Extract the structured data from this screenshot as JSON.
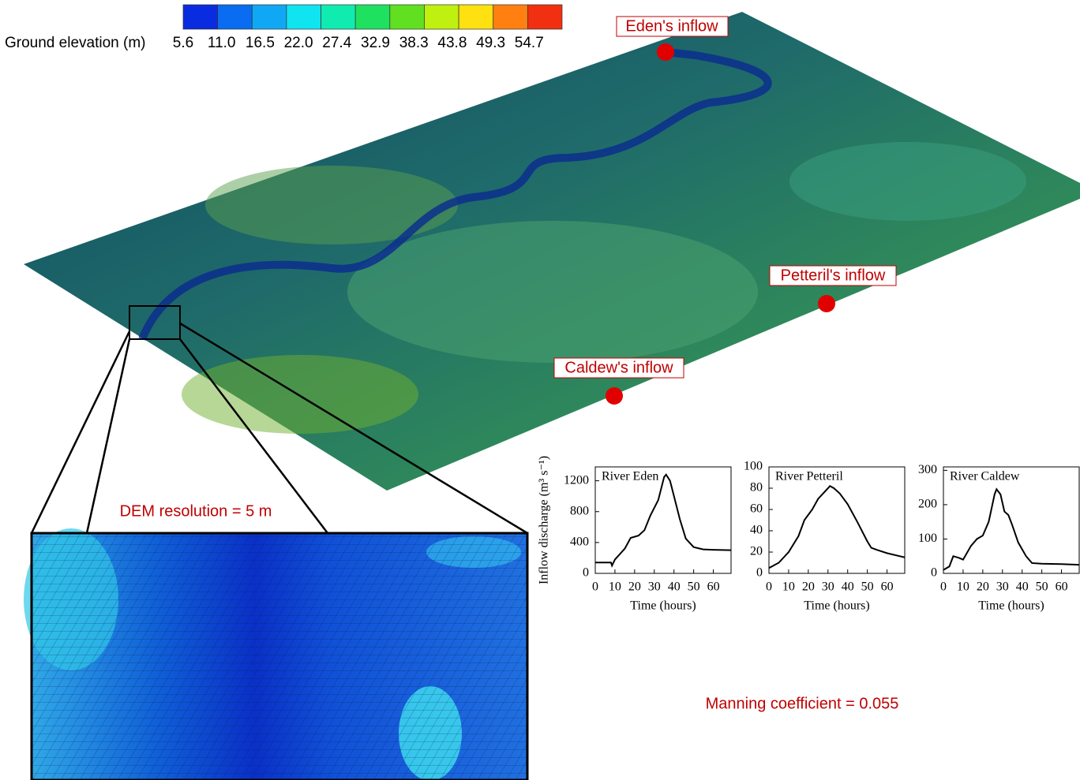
{
  "colorbar": {
    "label": "Ground elevation (m)",
    "ticks": [
      5.6,
      {
        "value": 11,
        "label": "11.0"
      },
      16.5,
      {
        "value": 22,
        "label": "22.0"
      },
      27.4,
      32.9,
      38.3,
      43.8,
      49.3,
      54.7
    ],
    "colors": [
      "#0a2ce0",
      "#0a6cf0",
      "#10a8f4",
      "#10e4f0",
      "#10ecb0",
      "#20e060",
      "#60e020",
      "#c0f010",
      "#ffe010",
      "#ff8010",
      "#f03010"
    ]
  },
  "annotations": {
    "eden": "Eden's inflow",
    "petteril": "Petteril's inflow",
    "caldew": "Caldew's inflow",
    "dem": "DEM resolution = 5 m",
    "manning": "Manning coefficient = 0.055"
  },
  "chart_data": [
    {
      "type": "line",
      "title": "River Eden",
      "ylabel": "Inflow discharge (m³ s⁻¹)",
      "xlabel": "Time (hours)",
      "color": "#000000",
      "x": [
        0,
        8,
        8.5,
        10,
        15,
        18,
        22,
        25,
        28,
        32,
        35,
        36,
        38,
        40,
        43,
        46,
        50,
        55,
        60,
        69
      ],
      "values": [
        140,
        140,
        100,
        180,
        320,
        460,
        490,
        560,
        750,
        950,
        1250,
        1280,
        1200,
        1000,
        700,
        450,
        340,
        310,
        305,
        300
      ],
      "xlim": [
        0,
        69
      ],
      "ylim": [
        0,
        1380
      ],
      "xticks": [
        0,
        10,
        20,
        30,
        40,
        50,
        60
      ],
      "yticks": [
        0,
        400,
        800,
        1200
      ]
    },
    {
      "type": "line",
      "title": "River Petteril",
      "xlabel": "Time (hours)",
      "color": "#000000",
      "x": [
        0,
        5,
        10,
        15,
        18,
        22,
        25,
        28,
        31,
        33,
        36,
        40,
        45,
        50,
        52,
        55,
        60,
        69
      ],
      "values": [
        5,
        10,
        20,
        35,
        50,
        60,
        70,
        76,
        82,
        80,
        75,
        65,
        48,
        30,
        24,
        22,
        19,
        15
      ],
      "xlim": [
        0,
        69
      ],
      "ylim": [
        0,
        100
      ],
      "xticks": [
        0,
        10,
        20,
        30,
        40,
        50,
        60
      ],
      "yticks": [
        0,
        20,
        40,
        60,
        80,
        100
      ]
    },
    {
      "type": "line",
      "title": "River Caldew",
      "xlabel": "Time (hours)",
      "color": "#000000",
      "x": [
        0,
        3,
        5,
        8,
        10,
        14,
        17,
        20,
        23,
        26,
        27,
        29,
        31,
        33,
        35,
        38,
        42,
        45,
        50,
        60,
        69
      ],
      "values": [
        10,
        20,
        50,
        45,
        40,
        80,
        100,
        110,
        150,
        230,
        245,
        230,
        180,
        170,
        140,
        90,
        50,
        30,
        28,
        27,
        25
      ],
      "xlim": [
        0,
        69
      ],
      "ylim": [
        0,
        310
      ],
      "xticks": [
        0,
        10,
        20,
        30,
        40,
        50,
        60
      ],
      "yticks": [
        0,
        100,
        200,
        300
      ]
    }
  ]
}
